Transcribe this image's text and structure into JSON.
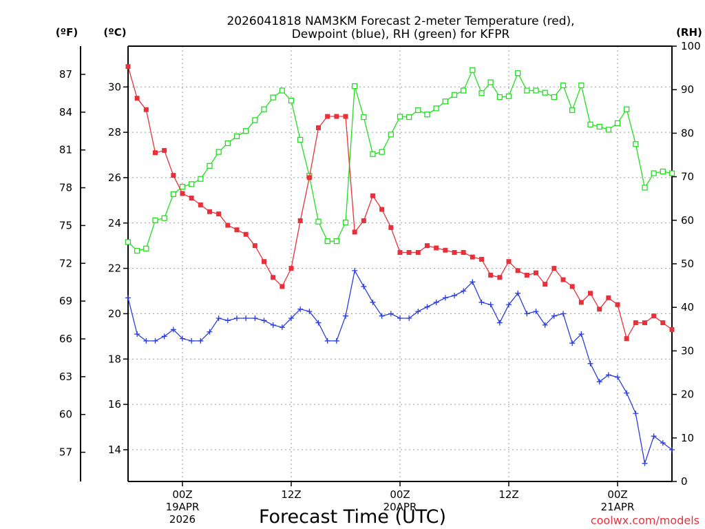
{
  "chart_data": {
    "type": "line",
    "title_line1": "2026041818 NAM3KM Forecast 2-meter Temperature (red),",
    "title_line2": "Dewpoint (blue), RH (green) for KFPR",
    "xlabel": "Forecast Time (UTC)",
    "credit": "coolwx.com/models",
    "unit_f": "(ºF)",
    "unit_c": "(ºC)",
    "unit_rh": "(RH)",
    "colors": {
      "temperature": "#e8303a",
      "dewpoint": "#2a3ce0",
      "rh": "#22dd22",
      "credit": "#e8303a"
    },
    "x_start_hours": 18,
    "x_end_hours": 78,
    "x_ticks": [
      {
        "hour": 24,
        "label": "00Z",
        "sub1": "19APR",
        "sub2": "2026"
      },
      {
        "hour": 36,
        "label": "12Z",
        "sub1": "",
        "sub2": ""
      },
      {
        "hour": 48,
        "label": "00Z",
        "sub1": "20APR",
        "sub2": ""
      },
      {
        "hour": 60,
        "label": "12Z",
        "sub1": "",
        "sub2": ""
      },
      {
        "hour": 72,
        "label": "00Z",
        "sub1": "21APR",
        "sub2": ""
      }
    ],
    "c_axis": {
      "ylim": [
        12.6,
        31.8
      ],
      "ticks": [
        "14",
        "16",
        "18",
        "20",
        "22",
        "24",
        "26",
        "28",
        "30"
      ]
    },
    "f_axis": {
      "ticks": [
        "57",
        "60",
        "63",
        "66",
        "69",
        "72",
        "75",
        "78",
        "81",
        "84",
        "87"
      ]
    },
    "rh_axis": {
      "ylim": [
        0,
        100
      ],
      "ticks": [
        "0",
        "10",
        "20",
        "30",
        "40",
        "50",
        "60",
        "70",
        "80",
        "90",
        "100"
      ]
    },
    "series": [
      {
        "name": "Temperature",
        "unit": "C",
        "marker": "filled-square",
        "values": [
          30.9,
          29.5,
          29.0,
          27.1,
          27.2,
          26.1,
          25.3,
          25.1,
          24.8,
          24.5,
          24.4,
          23.9,
          23.7,
          23.5,
          23.0,
          22.3,
          21.6,
          21.2,
          22.0,
          24.1,
          26.0,
          28.2,
          28.7,
          28.7,
          28.7,
          23.6,
          24.1,
          25.2,
          24.6,
          23.8,
          22.7,
          22.7,
          22.7,
          23.0,
          22.9,
          22.8,
          22.7,
          22.7,
          22.5,
          22.4,
          21.7,
          21.6,
          22.3,
          21.9,
          21.7,
          21.8,
          21.3,
          22.0,
          21.5,
          21.2,
          20.5,
          20.9,
          20.2,
          20.7,
          20.4,
          18.9,
          19.6,
          19.6,
          19.9,
          19.6,
          19.3
        ]
      },
      {
        "name": "Dewpoint",
        "unit": "C",
        "marker": "plus",
        "values": [
          20.7,
          19.1,
          18.8,
          18.8,
          19.0,
          19.3,
          18.9,
          18.8,
          18.8,
          19.2,
          19.8,
          19.7,
          19.8,
          19.8,
          19.8,
          19.7,
          19.5,
          19.4,
          19.8,
          20.2,
          20.1,
          19.6,
          18.8,
          18.8,
          19.9,
          21.9,
          21.2,
          20.5,
          19.9,
          20.0,
          19.8,
          19.8,
          20.1,
          20.3,
          20.5,
          20.7,
          20.8,
          21.0,
          21.4,
          20.5,
          20.4,
          19.6,
          20.4,
          20.9,
          20.0,
          20.1,
          19.5,
          19.9,
          20.0,
          18.7,
          19.1,
          17.8,
          17.0,
          17.3,
          17.2,
          16.5,
          15.6,
          13.4,
          14.6,
          14.3,
          14.0
        ]
      },
      {
        "name": "RH",
        "unit": "%",
        "marker": "open-square",
        "values": [
          55,
          53,
          53.5,
          60,
          60.5,
          66,
          67.7,
          68.3,
          69.5,
          72.5,
          75.7,
          77.7,
          79.3,
          80.5,
          83,
          85.5,
          88.2,
          89.8,
          87.5,
          78.5,
          70.2,
          59.7,
          55.2,
          55.2,
          59.5,
          90.8,
          83.7,
          75.2,
          75.7,
          79.7,
          83.8,
          83.7,
          85.3,
          84.3,
          85.7,
          87.3,
          88.8,
          89.8,
          94.5,
          89.2,
          91.7,
          88.3,
          88.5,
          93.8,
          89.8,
          89.8,
          89.3,
          88.3,
          91.0,
          85.3,
          91.0,
          82.0,
          81.5,
          80.8,
          82.3,
          85.5,
          77.5,
          67.5,
          70.8,
          71.2,
          70.8
        ]
      }
    ]
  }
}
